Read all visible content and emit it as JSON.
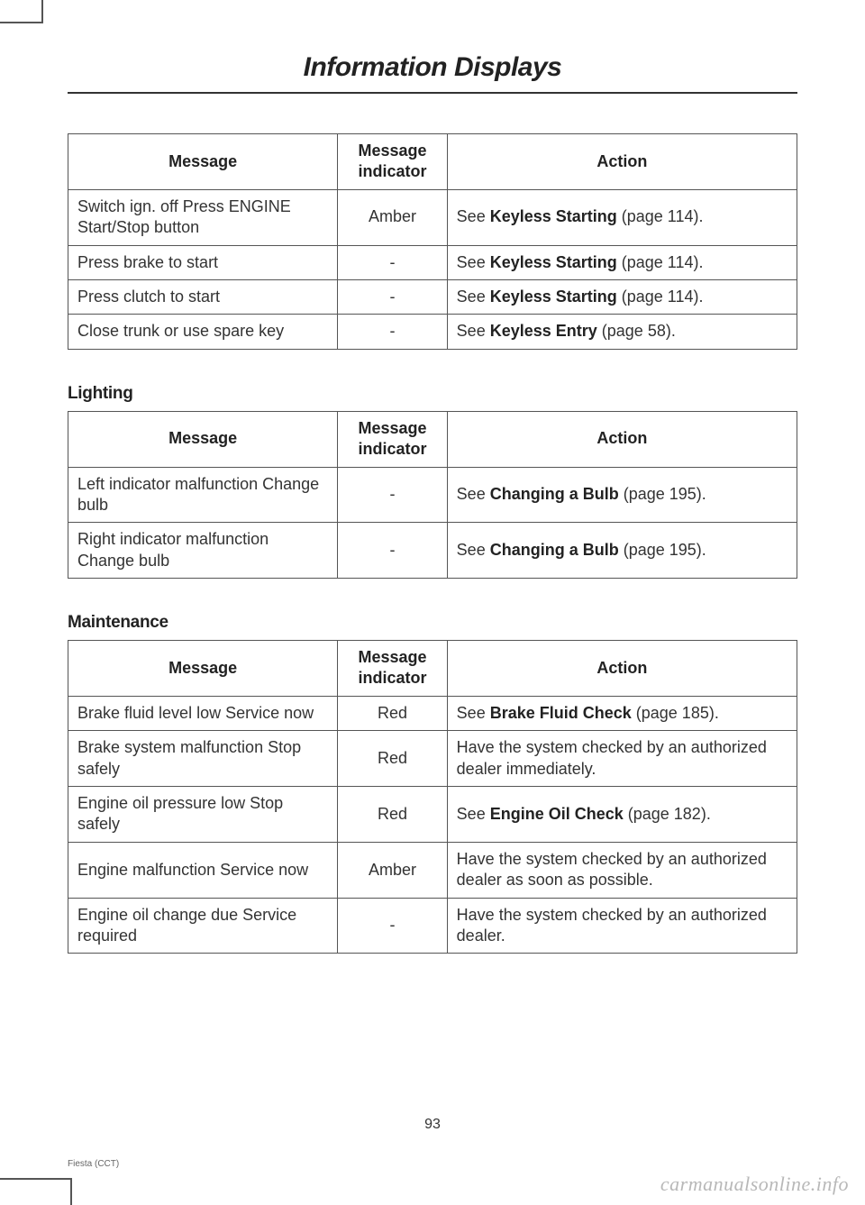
{
  "page": {
    "title": "Information Displays",
    "number": "93",
    "footer_model": "Fiesta (CCT)",
    "watermark": "carmanualsonline.info"
  },
  "columns": {
    "message": "Message",
    "indicator": "Message indicator",
    "action": "Action"
  },
  "sections": [
    {
      "heading": null,
      "rows": [
        {
          "message": "Switch ign. off Press ENGINE Start/Stop button",
          "indicator": "Amber",
          "action_pre": "See ",
          "action_bold": "Keyless Starting",
          "action_post": " (page 114)."
        },
        {
          "message": "Press brake to start",
          "indicator": "-",
          "action_pre": "See ",
          "action_bold": "Keyless Starting",
          "action_post": " (page 114)."
        },
        {
          "message": "Press clutch to start",
          "indicator": "-",
          "action_pre": "See ",
          "action_bold": "Keyless Starting",
          "action_post": " (page 114)."
        },
        {
          "message": "Close trunk or use spare key",
          "indicator": "-",
          "action_pre": "See ",
          "action_bold": "Keyless Entry",
          "action_post": " (page 58)."
        }
      ]
    },
    {
      "heading": "Lighting",
      "rows": [
        {
          "message": "Left indicator malfunction Change bulb",
          "indicator": "-",
          "action_pre": "See ",
          "action_bold": "Changing a Bulb",
          "action_post": " (page 195)."
        },
        {
          "message": "Right indicator malfunction Change bulb",
          "indicator": "-",
          "action_pre": "See ",
          "action_bold": "Changing a Bulb",
          "action_post": " (page 195)."
        }
      ]
    },
    {
      "heading": "Maintenance",
      "rows": [
        {
          "message": "Brake fluid level low Service now",
          "indicator": "Red",
          "action_pre": "See ",
          "action_bold": "Brake Fluid Check",
          "action_post": " (page 185)."
        },
        {
          "message": "Brake system malfunction Stop safely",
          "indicator": "Red",
          "action_pre": "",
          "action_bold": "",
          "action_post": "Have the system checked by an authorized dealer immediately."
        },
        {
          "message": "Engine oil pressure low Stop safely",
          "indicator": "Red",
          "action_pre": "See ",
          "action_bold": "Engine Oil Check",
          "action_post": " (page 182)."
        },
        {
          "message": "Engine malfunction Service now",
          "indicator": "Amber",
          "action_pre": "",
          "action_bold": "",
          "action_post": "Have the system checked by an authorized dealer as soon as possible."
        },
        {
          "message": "Engine oil change due Service required",
          "indicator": "-",
          "action_pre": "",
          "action_bold": "",
          "action_post": "Have the system checked by an authorized dealer."
        }
      ]
    }
  ]
}
